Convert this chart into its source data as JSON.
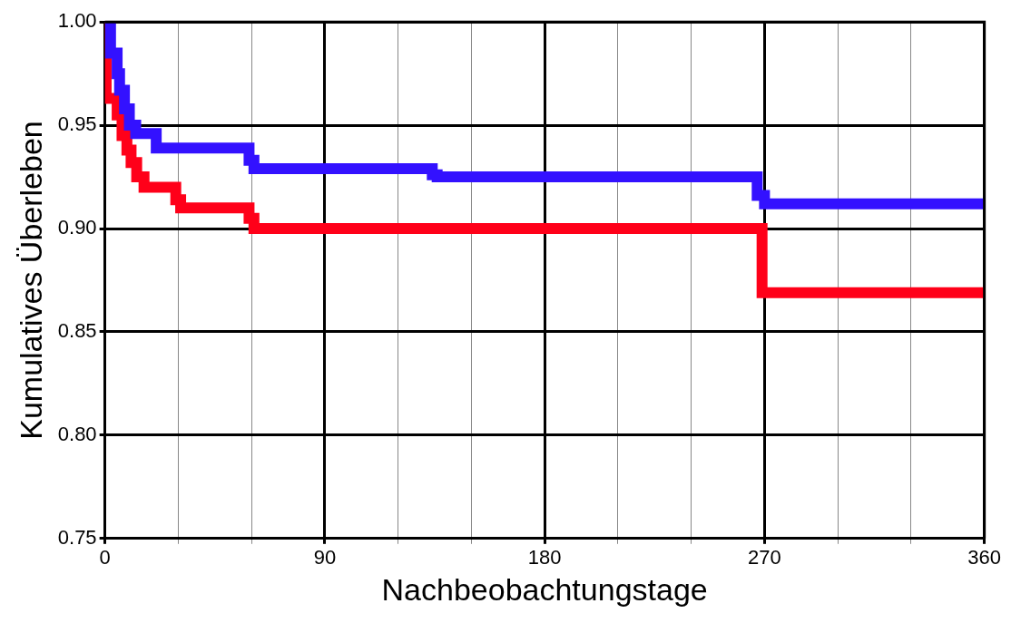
{
  "chart_data": {
    "type": "step",
    "xlabel": "Nachbeobachtungstage",
    "ylabel": "Kumulatives Überleben",
    "xlim": [
      0,
      360
    ],
    "ylim": [
      0.75,
      1.0
    ],
    "xticks": [
      0,
      {
        "value": 30,
        "label": null
      },
      {
        "value": 60,
        "label": null
      },
      90,
      {
        "value": 120,
        "label": null
      },
      {
        "value": 150,
        "label": null
      },
      180,
      {
        "value": 210,
        "label": null
      },
      {
        "value": 240,
        "label": null
      },
      270,
      {
        "value": 300,
        "label": null
      },
      {
        "value": 330,
        "label": null
      },
      360
    ],
    "yticks": [
      {
        "value": 0.75,
        "label": "0.75"
      },
      {
        "value": 0.8,
        "label": "0.80"
      },
      {
        "value": 0.85,
        "label": "0.85"
      },
      {
        "value": 0.9,
        "label": "0.90"
      },
      {
        "value": 0.95,
        "label": "0.95"
      },
      {
        "value": 1.0,
        "label": "1.00"
      }
    ],
    "grid": true,
    "legend": false,
    "marker": "none",
    "line_style": "solid",
    "series": [
      {
        "color": "#3311ff",
        "x": [
          0,
          2.3,
          5,
          6,
          8,
          10,
          12.6,
          21,
          59,
          61,
          134,
          136,
          267,
          270,
          360
        ],
        "values": [
          1.0,
          0.985,
          0.975,
          0.967,
          0.958,
          0.95,
          0.946,
          0.939,
          0.933,
          0.929,
          0.926,
          0.925,
          0.916,
          0.912,
          0.912
        ]
      },
      {
        "color": "#ff0019",
        "x": [
          0,
          0.5,
          5,
          7,
          9,
          10.7,
          13,
          16,
          29,
          31,
          59,
          61,
          269,
          360
        ],
        "values": [
          1.0,
          0.963,
          0.955,
          0.945,
          0.938,
          0.932,
          0.925,
          0.92,
          0.914,
          0.91,
          0.905,
          0.9,
          0.869,
          0.869
        ]
      }
    ]
  }
}
